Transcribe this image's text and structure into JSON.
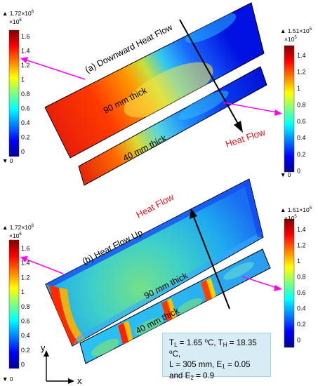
{
  "colorbars": [
    {
      "id": "cb-tl",
      "top_max": "1.72×10",
      "top_exp": "6",
      "top_unit": "×10",
      "unit_exp": "6",
      "bottom_min": "0",
      "ticks": [
        "1.6",
        "1.4",
        "1.2",
        "1",
        "0.8",
        "0.6",
        "0.4",
        "0.2",
        "0"
      ]
    },
    {
      "id": "cb-tr",
      "top_max": "1.51×10",
      "top_exp": "5",
      "top_unit": "×10",
      "unit_exp": "5",
      "bottom_min": "0",
      "ticks": [
        "1.4",
        "1.2",
        "1",
        "0.8",
        "0.6",
        "0.4",
        "0.2",
        "0"
      ]
    },
    {
      "id": "cb-bl",
      "top_max": "1.72×10",
      "top_exp": "6",
      "top_unit": "×10",
      "unit_exp": "6",
      "bottom_min": "0",
      "ticks": [
        "1.6",
        "1.4",
        "1.2",
        "1",
        "0.8",
        "0.6",
        "0.4",
        "0.2",
        "0"
      ]
    },
    {
      "id": "cb-br",
      "top_max": "1.51×10",
      "top_exp": "5",
      "top_unit": "×10",
      "unit_exp": "5",
      "bottom_min": "0",
      "ticks": [
        "1.4",
        "1.2",
        "1",
        "0.8",
        "0.6",
        "0.4",
        "0.2",
        "0"
      ]
    }
  ],
  "panel_a": {
    "title": "(a) Downward Heat Flow",
    "thick_top": "90 mm thick",
    "thick_bottom": "40 mm thick",
    "heat_label": "Heat Flow"
  },
  "panel_b": {
    "title": "(b) Heat Flow Up",
    "thick_top": "90 mm thick",
    "thick_bottom": "40 mm thick",
    "heat_label": "Heat Flow"
  },
  "axes": {
    "x": "x",
    "y": "y"
  },
  "params": {
    "tl": "T",
    "tl_sub": "L",
    "tl_val": " = 1.65 ",
    "deg": "o",
    "c1": "C, ",
    "th": "T",
    "th_sub": "H",
    "th_val": " = 18.35 ",
    "c2": "C,",
    "l_val": "L = 305 mm, E",
    "e1_sub": "1",
    "e1_val": " = 0.05",
    "e2_pre": "and E",
    "e2_sub": "2",
    "e2_val": " = 0.9"
  },
  "colors": {
    "arrow_magenta": "#ff00ff",
    "heat_red": "#e8141b",
    "info_box": "#d8ecf6"
  }
}
